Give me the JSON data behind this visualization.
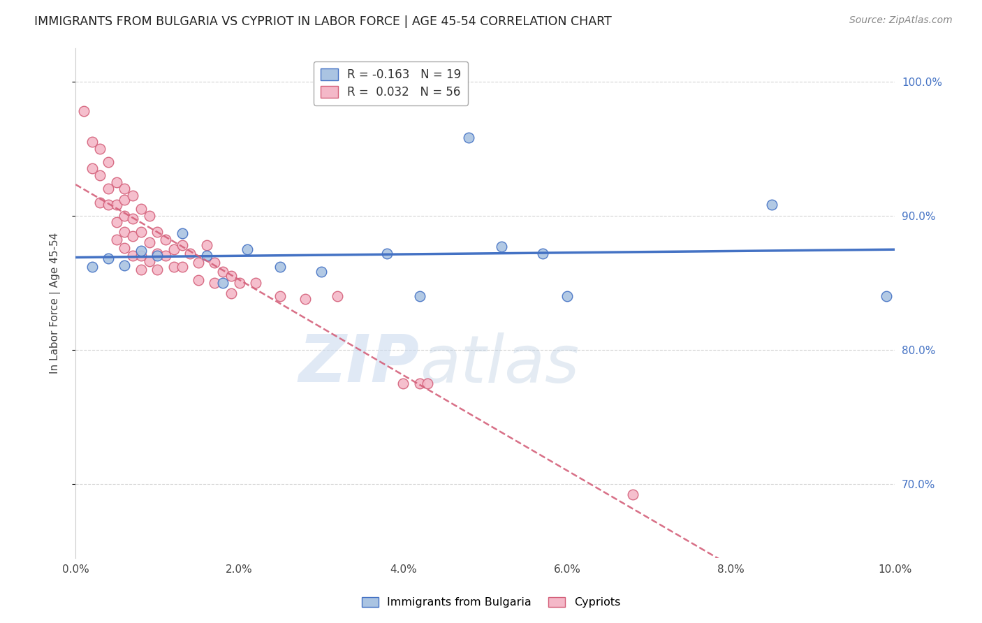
{
  "title": "IMMIGRANTS FROM BULGARIA VS CYPRIOT IN LABOR FORCE | AGE 45-54 CORRELATION CHART",
  "source": "Source: ZipAtlas.com",
  "ylabel": "In Labor Force | Age 45-54",
  "xlim": [
    0.0,
    0.1
  ],
  "ylim": [
    0.645,
    1.025
  ],
  "yticks": [
    0.7,
    0.8,
    0.9,
    1.0
  ],
  "ytick_labels": [
    "70.0%",
    "80.0%",
    "90.0%",
    "100.0%"
  ],
  "xticks": [
    0.0,
    0.02,
    0.04,
    0.06,
    0.08,
    0.1
  ],
  "xtick_labels": [
    "0.0%",
    "2.0%",
    "4.0%",
    "6.0%",
    "8.0%",
    "10.0%"
  ],
  "legend_blue_label": "R = -0.163   N = 19",
  "legend_pink_label": "R =  0.032   N = 56",
  "watermark_zip": "ZIP",
  "watermark_atlas": "atlas",
  "blue_color": "#aac4e2",
  "pink_color": "#f4b8c8",
  "blue_edge_color": "#4472c4",
  "pink_edge_color": "#d4607a",
  "blue_line_color": "#4472c4",
  "pink_line_color": "#d4607a",
  "grid_color": "#d0d0d0",
  "background_color": "#ffffff",
  "blue_x": [
    0.002,
    0.004,
    0.006,
    0.008,
    0.01,
    0.013,
    0.016,
    0.018,
    0.021,
    0.025,
    0.03,
    0.038,
    0.042,
    0.048,
    0.052,
    0.057,
    0.06,
    0.085,
    0.099
  ],
  "blue_y": [
    0.862,
    0.868,
    0.863,
    0.874,
    0.87,
    0.887,
    0.87,
    0.85,
    0.875,
    0.862,
    0.858,
    0.872,
    0.84,
    0.958,
    0.877,
    0.872,
    0.84,
    0.908,
    0.84
  ],
  "pink_x": [
    0.001,
    0.002,
    0.002,
    0.003,
    0.003,
    0.003,
    0.004,
    0.004,
    0.004,
    0.005,
    0.005,
    0.005,
    0.005,
    0.006,
    0.006,
    0.006,
    0.006,
    0.006,
    0.007,
    0.007,
    0.007,
    0.007,
    0.008,
    0.008,
    0.008,
    0.008,
    0.009,
    0.009,
    0.009,
    0.01,
    0.01,
    0.01,
    0.011,
    0.011,
    0.012,
    0.012,
    0.013,
    0.013,
    0.014,
    0.015,
    0.015,
    0.016,
    0.017,
    0.017,
    0.018,
    0.019,
    0.019,
    0.02,
    0.022,
    0.025,
    0.028,
    0.032,
    0.04,
    0.042,
    0.043,
    0.068
  ],
  "pink_y": [
    0.978,
    0.955,
    0.935,
    0.95,
    0.93,
    0.91,
    0.94,
    0.92,
    0.908,
    0.925,
    0.908,
    0.895,
    0.882,
    0.92,
    0.912,
    0.9,
    0.888,
    0.876,
    0.915,
    0.898,
    0.885,
    0.87,
    0.905,
    0.888,
    0.87,
    0.86,
    0.9,
    0.88,
    0.866,
    0.888,
    0.872,
    0.86,
    0.882,
    0.87,
    0.875,
    0.862,
    0.878,
    0.862,
    0.872,
    0.865,
    0.852,
    0.878,
    0.865,
    0.85,
    0.858,
    0.855,
    0.842,
    0.85,
    0.85,
    0.84,
    0.838,
    0.84,
    0.775,
    0.775,
    0.775,
    0.692
  ]
}
